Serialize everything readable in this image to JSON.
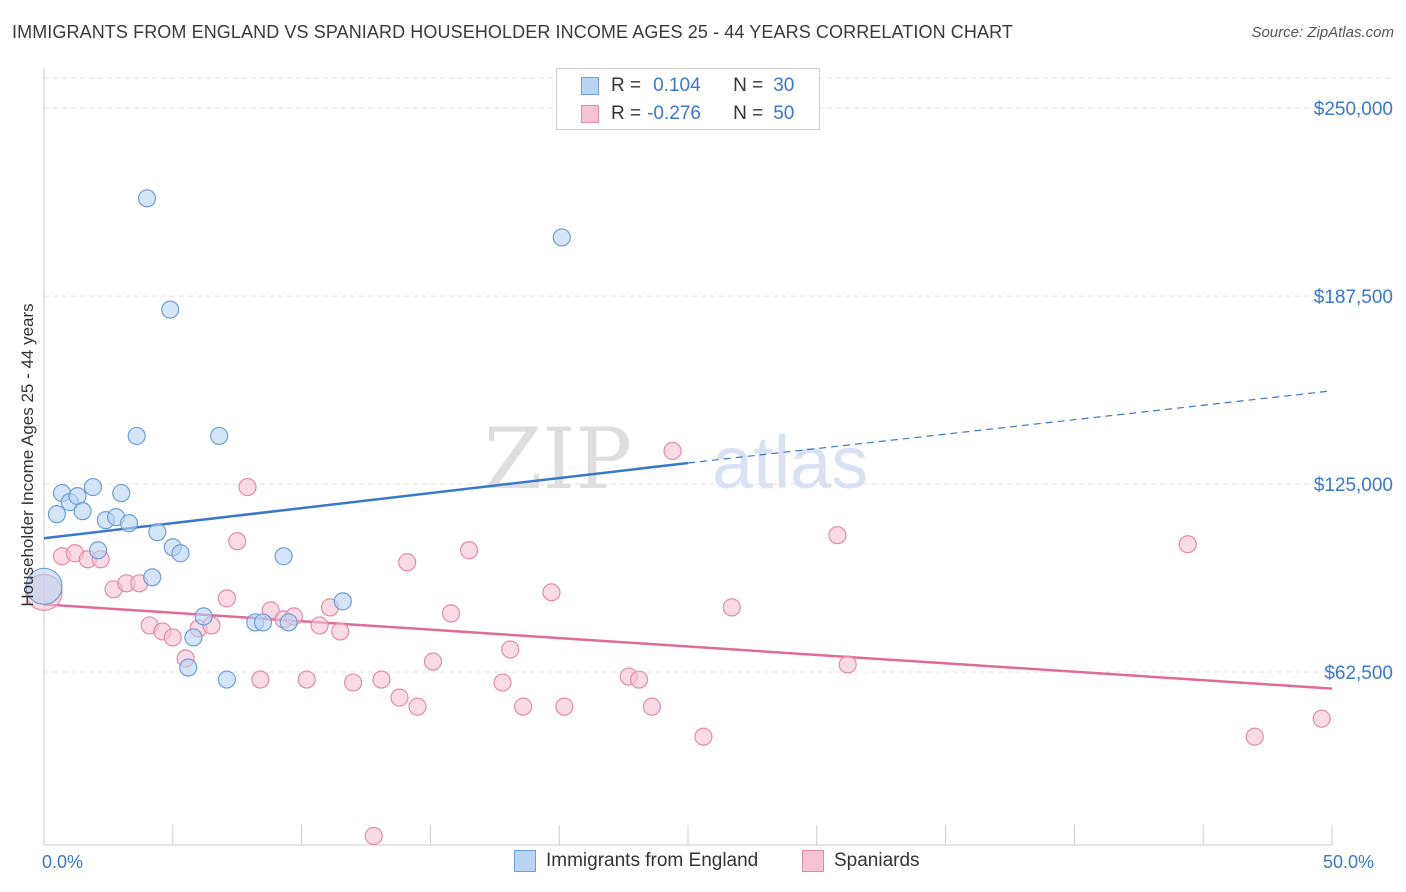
{
  "title": "IMMIGRANTS FROM ENGLAND VS SPANIARD HOUSEHOLDER INCOME AGES 25 - 44 YEARS CORRELATION CHART",
  "source": "Source: ZipAtlas.com",
  "watermark": {
    "part1": "ZIP",
    "part2": "atlas"
  },
  "legend_top": {
    "rows": [
      {
        "r_label": "R =",
        "r_value": "0.104",
        "n_label": "N =",
        "n_value": "30"
      },
      {
        "r_label": "R =",
        "r_value": "-0.276",
        "n_label": "N =",
        "n_value": "50"
      }
    ]
  },
  "legend_bottom": {
    "series1": "Immigrants from England",
    "series2": "Spaniards"
  },
  "x_tick_labels": {
    "min": "0.0%",
    "max": "50.0%"
  },
  "colors": {
    "england_fill": "#b9d3f3",
    "england_stroke": "#6c9fd8",
    "england_line": "#3a78c9",
    "spain_fill": "#f6c3d3",
    "spain_stroke": "#e58aa9",
    "spain_line": "#e06b98",
    "tick_text": "#3a78c9"
  },
  "chart_data": {
    "type": "scatter",
    "xlabel": "",
    "ylabel": "Householder Income Ages 25 - 44 years",
    "xlim": [
      0,
      50
    ],
    "ylim": [
      5000,
      260000
    ],
    "y_ticks": [
      62500,
      125000,
      187500,
      250000
    ],
    "y_tick_labels": [
      "$62,500",
      "$125,000",
      "$187,500",
      "$250,000"
    ],
    "grid": true,
    "legend_placement": "top-center",
    "series": [
      {
        "name": "Immigrants from England",
        "r": 0.104,
        "n": 30,
        "trend": {
          "x": [
            0,
            25,
            50
          ],
          "y": [
            107000,
            132000,
            156000
          ],
          "solid_until": 25
        },
        "points": [
          {
            "x": 0.0,
            "y": 91000,
            "big": true
          },
          {
            "x": 0.5,
            "y": 115000
          },
          {
            "x": 0.7,
            "y": 122000
          },
          {
            "x": 1.0,
            "y": 119000
          },
          {
            "x": 1.3,
            "y": 121000
          },
          {
            "x": 1.5,
            "y": 116000
          },
          {
            "x": 1.9,
            "y": 124000
          },
          {
            "x": 2.1,
            "y": 103000
          },
          {
            "x": 2.4,
            "y": 113000
          },
          {
            "x": 2.8,
            "y": 114000
          },
          {
            "x": 3.0,
            "y": 122000
          },
          {
            "x": 3.3,
            "y": 112000
          },
          {
            "x": 3.6,
            "y": 141000
          },
          {
            "x": 4.0,
            "y": 220000
          },
          {
            "x": 4.2,
            "y": 94000
          },
          {
            "x": 4.4,
            "y": 109000
          },
          {
            "x": 4.9,
            "y": 183000
          },
          {
            "x": 5.0,
            "y": 104000
          },
          {
            "x": 5.3,
            "y": 102000
          },
          {
            "x": 5.6,
            "y": 64000
          },
          {
            "x": 5.8,
            "y": 74000
          },
          {
            "x": 6.2,
            "y": 81000
          },
          {
            "x": 6.8,
            "y": 141000
          },
          {
            "x": 7.1,
            "y": 60000
          },
          {
            "x": 8.2,
            "y": 79000
          },
          {
            "x": 8.5,
            "y": 79000
          },
          {
            "x": 9.3,
            "y": 101000
          },
          {
            "x": 9.5,
            "y": 79000
          },
          {
            "x": 11.6,
            "y": 86000
          },
          {
            "x": 20.1,
            "y": 207000
          }
        ]
      },
      {
        "name": "Spaniards",
        "r": -0.276,
        "n": 50,
        "trend": {
          "x": [
            0,
            50
          ],
          "y": [
            85000,
            57000
          ]
        },
        "points": [
          {
            "x": 0.0,
            "y": 89000,
            "big": true
          },
          {
            "x": 0.7,
            "y": 101000
          },
          {
            "x": 1.2,
            "y": 102000
          },
          {
            "x": 1.7,
            "y": 100000
          },
          {
            "x": 2.2,
            "y": 100000
          },
          {
            "x": 2.7,
            "y": 90000
          },
          {
            "x": 3.2,
            "y": 92000
          },
          {
            "x": 3.7,
            "y": 92000
          },
          {
            "x": 4.1,
            "y": 78000
          },
          {
            "x": 4.6,
            "y": 76000
          },
          {
            "x": 5.0,
            "y": 74000
          },
          {
            "x": 5.5,
            "y": 67000
          },
          {
            "x": 6.0,
            "y": 77000
          },
          {
            "x": 6.5,
            "y": 78000
          },
          {
            "x": 7.1,
            "y": 87000
          },
          {
            "x": 7.5,
            "y": 106000
          },
          {
            "x": 7.9,
            "y": 124000
          },
          {
            "x": 8.4,
            "y": 60000
          },
          {
            "x": 8.8,
            "y": 83000
          },
          {
            "x": 9.3,
            "y": 80000
          },
          {
            "x": 9.7,
            "y": 81000
          },
          {
            "x": 10.2,
            "y": 60000
          },
          {
            "x": 10.7,
            "y": 78000
          },
          {
            "x": 11.1,
            "y": 84000
          },
          {
            "x": 11.5,
            "y": 76000
          },
          {
            "x": 12.0,
            "y": 59000
          },
          {
            "x": 12.8,
            "y": 8000
          },
          {
            "x": 13.1,
            "y": 60000
          },
          {
            "x": 13.8,
            "y": 54000
          },
          {
            "x": 14.1,
            "y": 99000
          },
          {
            "x": 14.5,
            "y": 51000
          },
          {
            "x": 15.1,
            "y": 66000
          },
          {
            "x": 15.8,
            "y": 82000
          },
          {
            "x": 16.5,
            "y": 103000
          },
          {
            "x": 17.8,
            "y": 59000
          },
          {
            "x": 18.1,
            "y": 70000
          },
          {
            "x": 18.6,
            "y": 51000
          },
          {
            "x": 19.7,
            "y": 89000
          },
          {
            "x": 20.2,
            "y": 51000
          },
          {
            "x": 22.7,
            "y": 61000
          },
          {
            "x": 23.1,
            "y": 60000
          },
          {
            "x": 23.6,
            "y": 51000
          },
          {
            "x": 24.4,
            "y": 136000
          },
          {
            "x": 25.6,
            "y": 41000
          },
          {
            "x": 26.7,
            "y": 84000
          },
          {
            "x": 30.8,
            "y": 108000
          },
          {
            "x": 31.2,
            "y": 65000
          },
          {
            "x": 44.4,
            "y": 105000
          },
          {
            "x": 47.0,
            "y": 41000
          },
          {
            "x": 49.6,
            "y": 47000
          }
        ]
      }
    ]
  }
}
